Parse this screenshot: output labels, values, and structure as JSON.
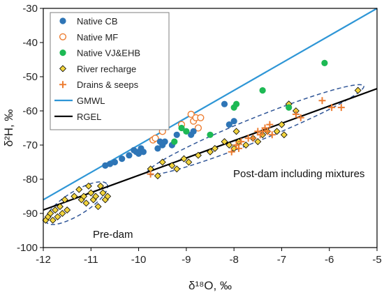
{
  "chart_data": {
    "type": "scatter",
    "title": "",
    "xlabel": "δ¹⁸O, ‰",
    "ylabel": "δ²H, ‰",
    "xlim": [
      -12,
      -5
    ],
    "ylim": [
      -100,
      -30
    ],
    "x_ticks": [
      -12,
      -11,
      -10,
      -9,
      -8,
      -7,
      -6,
      -5
    ],
    "y_ticks": [
      -100,
      -90,
      -80,
      -70,
      -60,
      -50,
      -40,
      -30
    ],
    "grid": false,
    "legend_position": "top-left",
    "series": [
      {
        "name": "Native CB",
        "marker": "filled-circle",
        "color": "#2e75b6",
        "points": [
          [
            -10.7,
            -76
          ],
          [
            -10.6,
            -75.5
          ],
          [
            -10.5,
            -75
          ],
          [
            -10.35,
            -74
          ],
          [
            -10.2,
            -73
          ],
          [
            -10.1,
            -71.5
          ],
          [
            -10.05,
            -72
          ],
          [
            -10.0,
            -72.5
          ],
          [
            -9.95,
            -71
          ],
          [
            -9.9,
            -72
          ],
          [
            -9.6,
            -71
          ],
          [
            -9.5,
            -70
          ],
          [
            -9.55,
            -69
          ],
          [
            -9.45,
            -69
          ],
          [
            -9.3,
            -70
          ],
          [
            -9.2,
            -67
          ],
          [
            -9.0,
            -66
          ],
          [
            -8.9,
            -67
          ],
          [
            -8.85,
            -66
          ],
          [
            -8.2,
            -58
          ],
          [
            -8.1,
            -64
          ],
          [
            -8.0,
            -63
          ]
        ]
      },
      {
        "name": "Native MF",
        "marker": "open-circle",
        "color": "#ed7d31",
        "points": [
          [
            -9.7,
            -68.5
          ],
          [
            -9.65,
            -68
          ],
          [
            -9.5,
            -66
          ],
          [
            -9.1,
            -64
          ],
          [
            -8.9,
            -61
          ],
          [
            -8.85,
            -63
          ],
          [
            -8.8,
            -62
          ],
          [
            -8.75,
            -65
          ],
          [
            -8.7,
            -62
          ]
        ]
      },
      {
        "name": "Native VJ&EHB",
        "marker": "filled-circle",
        "color": "#1db954",
        "points": [
          [
            -9.25,
            -69
          ],
          [
            -9.1,
            -65
          ],
          [
            -9.0,
            -66
          ],
          [
            -8.5,
            -67
          ],
          [
            -8.0,
            -59
          ],
          [
            -7.95,
            -58
          ],
          [
            -7.4,
            -54
          ],
          [
            -6.85,
            -59
          ],
          [
            -6.1,
            -46
          ]
        ]
      },
      {
        "name": "River recharge",
        "marker": "diamond",
        "color": "#f2d43d",
        "points": [
          [
            -11.95,
            -92
          ],
          [
            -11.9,
            -91
          ],
          [
            -11.85,
            -90
          ],
          [
            -11.8,
            -92
          ],
          [
            -11.75,
            -89
          ],
          [
            -11.7,
            -91
          ],
          [
            -11.65,
            -88
          ],
          [
            -11.6,
            -90
          ],
          [
            -11.55,
            -86
          ],
          [
            -11.5,
            -89
          ],
          [
            -11.35,
            -85
          ],
          [
            -11.25,
            -83
          ],
          [
            -11.2,
            -86
          ],
          [
            -11.15,
            -85
          ],
          [
            -11.1,
            -87
          ],
          [
            -11.05,
            -82
          ],
          [
            -11.0,
            -84
          ],
          [
            -10.95,
            -86
          ],
          [
            -10.9,
            -85
          ],
          [
            -10.85,
            -88
          ],
          [
            -10.8,
            -82
          ],
          [
            -10.75,
            -84
          ],
          [
            -10.7,
            -86
          ],
          [
            -10.65,
            -85
          ],
          [
            -9.75,
            -77
          ],
          [
            -9.6,
            -79
          ],
          [
            -9.5,
            -75
          ],
          [
            -9.3,
            -76
          ],
          [
            -9.2,
            -77
          ],
          [
            -9.05,
            -74
          ],
          [
            -8.95,
            -75
          ],
          [
            -8.75,
            -73
          ],
          [
            -8.5,
            -72
          ],
          [
            -8.4,
            -71
          ],
          [
            -8.2,
            -69
          ],
          [
            -8.1,
            -70
          ],
          [
            -8.0,
            -71
          ],
          [
            -7.95,
            -66
          ],
          [
            -7.9,
            -69
          ],
          [
            -7.75,
            -70
          ],
          [
            -7.6,
            -68
          ],
          [
            -7.5,
            -69
          ],
          [
            -7.4,
            -67
          ],
          [
            -7.3,
            -66
          ],
          [
            -7.1,
            -66
          ],
          [
            -7.0,
            -64
          ],
          [
            -6.95,
            -67
          ],
          [
            -6.85,
            -58
          ],
          [
            -6.7,
            -60
          ],
          [
            -5.4,
            -54
          ]
        ]
      },
      {
        "name": "Drains & seeps",
        "marker": "plus",
        "color": "#ed7d31",
        "points": [
          [
            -9.75,
            -78.5
          ],
          [
            -8.05,
            -72
          ],
          [
            -7.95,
            -70
          ],
          [
            -7.9,
            -71
          ],
          [
            -7.85,
            -69
          ],
          [
            -7.7,
            -68
          ],
          [
            -7.6,
            -68
          ],
          [
            -7.5,
            -66
          ],
          [
            -7.45,
            -67
          ],
          [
            -7.4,
            -66
          ],
          [
            -7.35,
            -65
          ],
          [
            -7.3,
            -66
          ],
          [
            -7.25,
            -64
          ],
          [
            -7.2,
            -67
          ],
          [
            -6.7,
            -61
          ],
          [
            -6.6,
            -62
          ],
          [
            -6.15,
            -57
          ],
          [
            -5.95,
            -59
          ],
          [
            -5.75,
            -59
          ]
        ]
      }
    ],
    "lines": [
      {
        "name": "GMWL",
        "color": "#2e96d6",
        "x": [
          -12,
          -5
        ],
        "y": [
          -86,
          -30
        ]
      },
      {
        "name": "RGEL",
        "color": "#000000",
        "x": [
          -12,
          -5
        ],
        "y": [
          -89,
          -53.5
        ]
      }
    ],
    "ellipses": [
      {
        "label": "Pre-dam",
        "cx": -11.3,
        "cy": -87,
        "rx": 0.75,
        "ry": 3.4,
        "rotate_deg": -32
      },
      {
        "label": "Post-dam including mixtures",
        "cx": -7.55,
        "cy": -65.5,
        "rx": 2.45,
        "ry": 3.4,
        "rotate_deg": -22
      }
    ],
    "annotations": [
      "Pre-dam",
      "Post-dam including mixtures"
    ]
  }
}
